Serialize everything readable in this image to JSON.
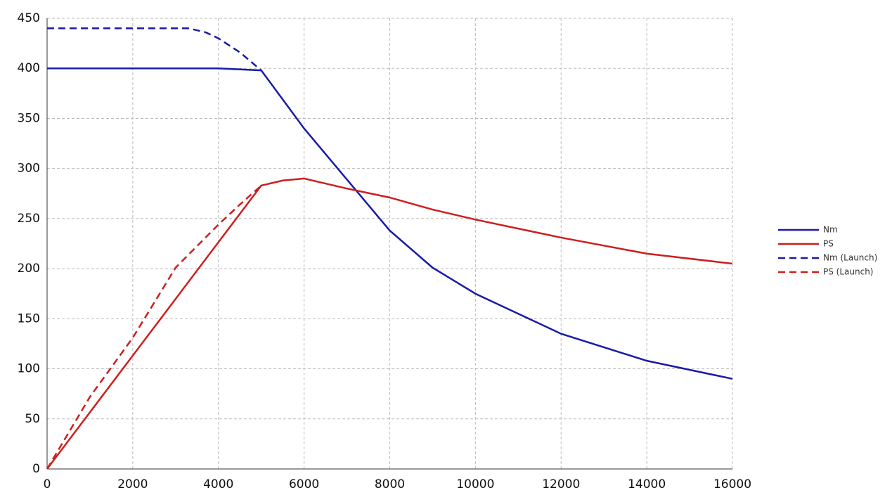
{
  "chart_data": {
    "type": "line",
    "xlim": [
      0,
      16000
    ],
    "xticks": [
      0,
      2000,
      4000,
      6000,
      8000,
      10000,
      12000,
      14000,
      16000
    ],
    "ylim": [
      0,
      450
    ],
    "yticks": [
      0,
      50,
      100,
      150,
      200,
      250,
      300,
      350,
      400,
      450
    ],
    "grid": true,
    "legend": "right",
    "series": [
      {
        "name": "Nm",
        "color": "#1a1aaa",
        "linestyle": "solid",
        "x": [
          0,
          4000,
          5000,
          6000,
          8000,
          9000,
          10000,
          12000,
          14000,
          16000
        ],
        "values": [
          400,
          400,
          398,
          340,
          238,
          201,
          175,
          135,
          108,
          90
        ]
      },
      {
        "name": "PS",
        "color": "#cc1f1f",
        "linestyle": "solid",
        "x": [
          0,
          5000,
          5500,
          6000,
          7000,
          8000,
          9000,
          10000,
          12000,
          14000,
          16000
        ],
        "values": [
          0,
          283,
          288,
          290,
          280,
          271,
          259,
          249,
          231,
          215,
          205
        ]
      },
      {
        "name": "Nm (Launch)",
        "color": "#1a1aaa",
        "linestyle": "dashed",
        "x": [
          0,
          3300,
          3700,
          4000,
          4500,
          5000
        ],
        "values": [
          440,
          440,
          436,
          430,
          416,
          398
        ]
      },
      {
        "name": "PS (Launch)",
        "color": "#cc1f1f",
        "linestyle": "dashed",
        "x": [
          0,
          1000,
          2000,
          3000,
          4000,
          4500,
          5000
        ],
        "values": [
          0,
          72,
          131,
          201,
          244,
          264,
          283
        ]
      }
    ]
  }
}
